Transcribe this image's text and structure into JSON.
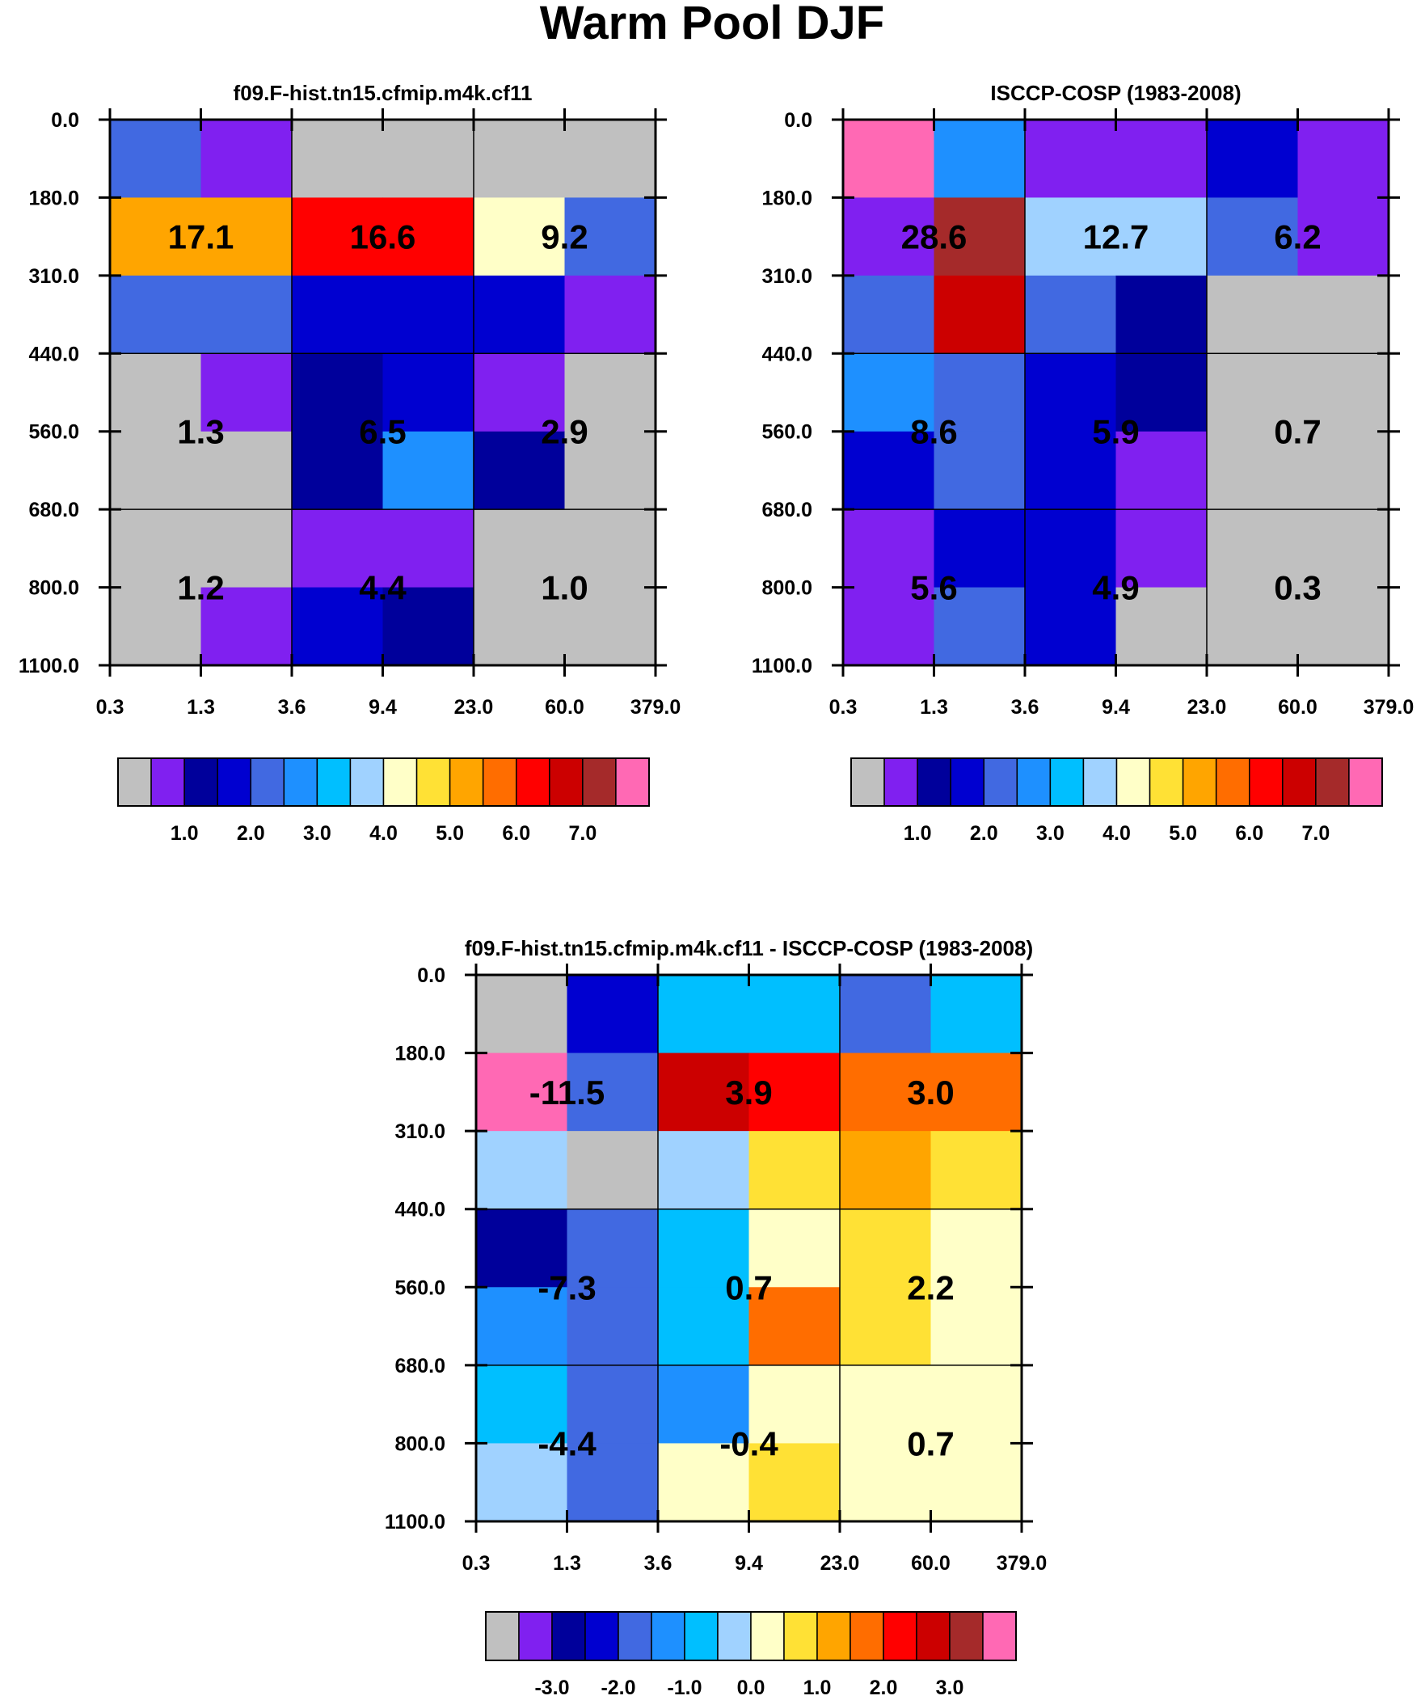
{
  "title": "Warm Pool DJF",
  "palette": {
    "gray": "#c0c0c0",
    "purple": "#8020f0",
    "navy": "#00009b",
    "blue": "#0000d0",
    "royal": "#4169e1",
    "dodger": "#1e90ff",
    "cyan": "#00bfff",
    "lightblue": "#a0d2ff",
    "cream": "#ffffc8",
    "yellow": "#ffe135",
    "orange": "#ffa500",
    "darkorange": "#ff6d00",
    "red": "#ff0000",
    "crimson": "#cc0000",
    "brown": "#a52a2a",
    "pink": "#ff69b4"
  },
  "chart_data": [
    {
      "type": "heatmap",
      "title": "f09.F-hist.tn15.cfmip.m4k.cf11",
      "x_tick_labels": [
        "0.3",
        "1.3",
        "3.6",
        "9.4",
        "23.0",
        "60.0",
        "379.0"
      ],
      "y_tick_labels": [
        "0.0",
        "180.0",
        "310.0",
        "440.0",
        "560.0",
        "680.0",
        "800.0",
        "1100.0"
      ],
      "cell_colors": [
        [
          "royal",
          "purple",
          "gray",
          "gray",
          "gray",
          "gray"
        ],
        [
          "orange",
          "orange",
          "red",
          "red",
          "cream",
          "royal"
        ],
        [
          "royal",
          "royal",
          "blue",
          "blue",
          "blue",
          "purple"
        ],
        [
          "gray",
          "purple",
          "navy",
          "blue",
          "purple",
          "gray"
        ],
        [
          "gray",
          "gray",
          "navy",
          "dodger",
          "navy",
          "gray"
        ],
        [
          "gray",
          "gray",
          "purple",
          "purple",
          "gray",
          "gray"
        ],
        [
          "gray",
          "purple",
          "blue",
          "navy",
          "gray",
          "gray"
        ]
      ],
      "block_values": [
        [
          "17.1",
          "16.6",
          "9.2"
        ],
        [
          "1.3",
          "6.5",
          "2.9"
        ],
        [
          "1.2",
          "4.4",
          "1.0"
        ]
      ],
      "colorbar": {
        "colors": [
          "gray",
          "purple",
          "navy",
          "blue",
          "royal",
          "dodger",
          "cyan",
          "lightblue",
          "cream",
          "yellow",
          "orange",
          "darkorange",
          "red",
          "crimson",
          "brown",
          "pink"
        ],
        "labels": [
          "1.0",
          "2.0",
          "3.0",
          "4.0",
          "5.0",
          "6.0",
          "7.0"
        ]
      }
    },
    {
      "type": "heatmap",
      "title": "ISCCP-COSP (1983-2008)",
      "x_tick_labels": [
        "0.3",
        "1.3",
        "3.6",
        "9.4",
        "23.0",
        "60.0",
        "379.0"
      ],
      "y_tick_labels": [
        "0.0",
        "180.0",
        "310.0",
        "440.0",
        "560.0",
        "680.0",
        "800.0",
        "1100.0"
      ],
      "cell_colors": [
        [
          "pink",
          "dodger",
          "purple",
          "purple",
          "blue",
          "purple"
        ],
        [
          "purple",
          "brown",
          "lightblue",
          "lightblue",
          "royal",
          "purple"
        ],
        [
          "royal",
          "crimson",
          "royal",
          "navy",
          "gray",
          "gray"
        ],
        [
          "dodger",
          "royal",
          "blue",
          "navy",
          "gray",
          "gray"
        ],
        [
          "blue",
          "royal",
          "blue",
          "purple",
          "gray",
          "gray"
        ],
        [
          "purple",
          "blue",
          "blue",
          "purple",
          "gray",
          "gray"
        ],
        [
          "purple",
          "royal",
          "blue",
          "gray",
          "gray",
          "gray"
        ]
      ],
      "block_values": [
        [
          "28.6",
          "12.7",
          "6.2"
        ],
        [
          "8.6",
          "5.9",
          "0.7"
        ],
        [
          "5.6",
          "4.9",
          "0.3"
        ]
      ],
      "colorbar": {
        "colors": [
          "gray",
          "purple",
          "navy",
          "blue",
          "royal",
          "dodger",
          "cyan",
          "lightblue",
          "cream",
          "yellow",
          "orange",
          "darkorange",
          "red",
          "crimson",
          "brown",
          "pink"
        ],
        "labels": [
          "1.0",
          "2.0",
          "3.0",
          "4.0",
          "5.0",
          "6.0",
          "7.0"
        ]
      }
    },
    {
      "type": "heatmap",
      "title": "f09.F-hist.tn15.cfmip.m4k.cf11 - ISCCP-COSP (1983-2008)",
      "x_tick_labels": [
        "0.3",
        "1.3",
        "3.6",
        "9.4",
        "23.0",
        "60.0",
        "379.0"
      ],
      "y_tick_labels": [
        "0.0",
        "180.0",
        "310.0",
        "440.0",
        "560.0",
        "680.0",
        "800.0",
        "1100.0"
      ],
      "cell_colors": [
        [
          "gray",
          "blue",
          "cyan",
          "cyan",
          "royal",
          "cyan"
        ],
        [
          "pink",
          "royal",
          "crimson",
          "red",
          "darkorange",
          "darkorange"
        ],
        [
          "lightblue",
          "gray",
          "lightblue",
          "yellow",
          "orange",
          "yellow"
        ],
        [
          "navy",
          "royal",
          "cyan",
          "cream",
          "yellow",
          "cream"
        ],
        [
          "dodger",
          "royal",
          "cyan",
          "darkorange",
          "yellow",
          "cream"
        ],
        [
          "cyan",
          "royal",
          "dodger",
          "cream",
          "cream",
          "cream"
        ],
        [
          "lightblue",
          "royal",
          "cream",
          "yellow",
          "cream",
          "cream"
        ]
      ],
      "block_values": [
        [
          "-11.5",
          "3.9",
          "3.0"
        ],
        [
          "-7.3",
          "0.7",
          "2.2"
        ],
        [
          "-4.4",
          "-0.4",
          "0.7"
        ]
      ],
      "colorbar": {
        "colors": [
          "gray",
          "purple",
          "navy",
          "blue",
          "royal",
          "dodger",
          "cyan",
          "lightblue",
          "cream",
          "yellow",
          "orange",
          "darkorange",
          "red",
          "crimson",
          "brown",
          "pink"
        ],
        "labels": [
          "-3.0",
          "-2.0",
          "-1.0",
          "0.0",
          "1.0",
          "2.0",
          "3.0"
        ]
      }
    }
  ]
}
